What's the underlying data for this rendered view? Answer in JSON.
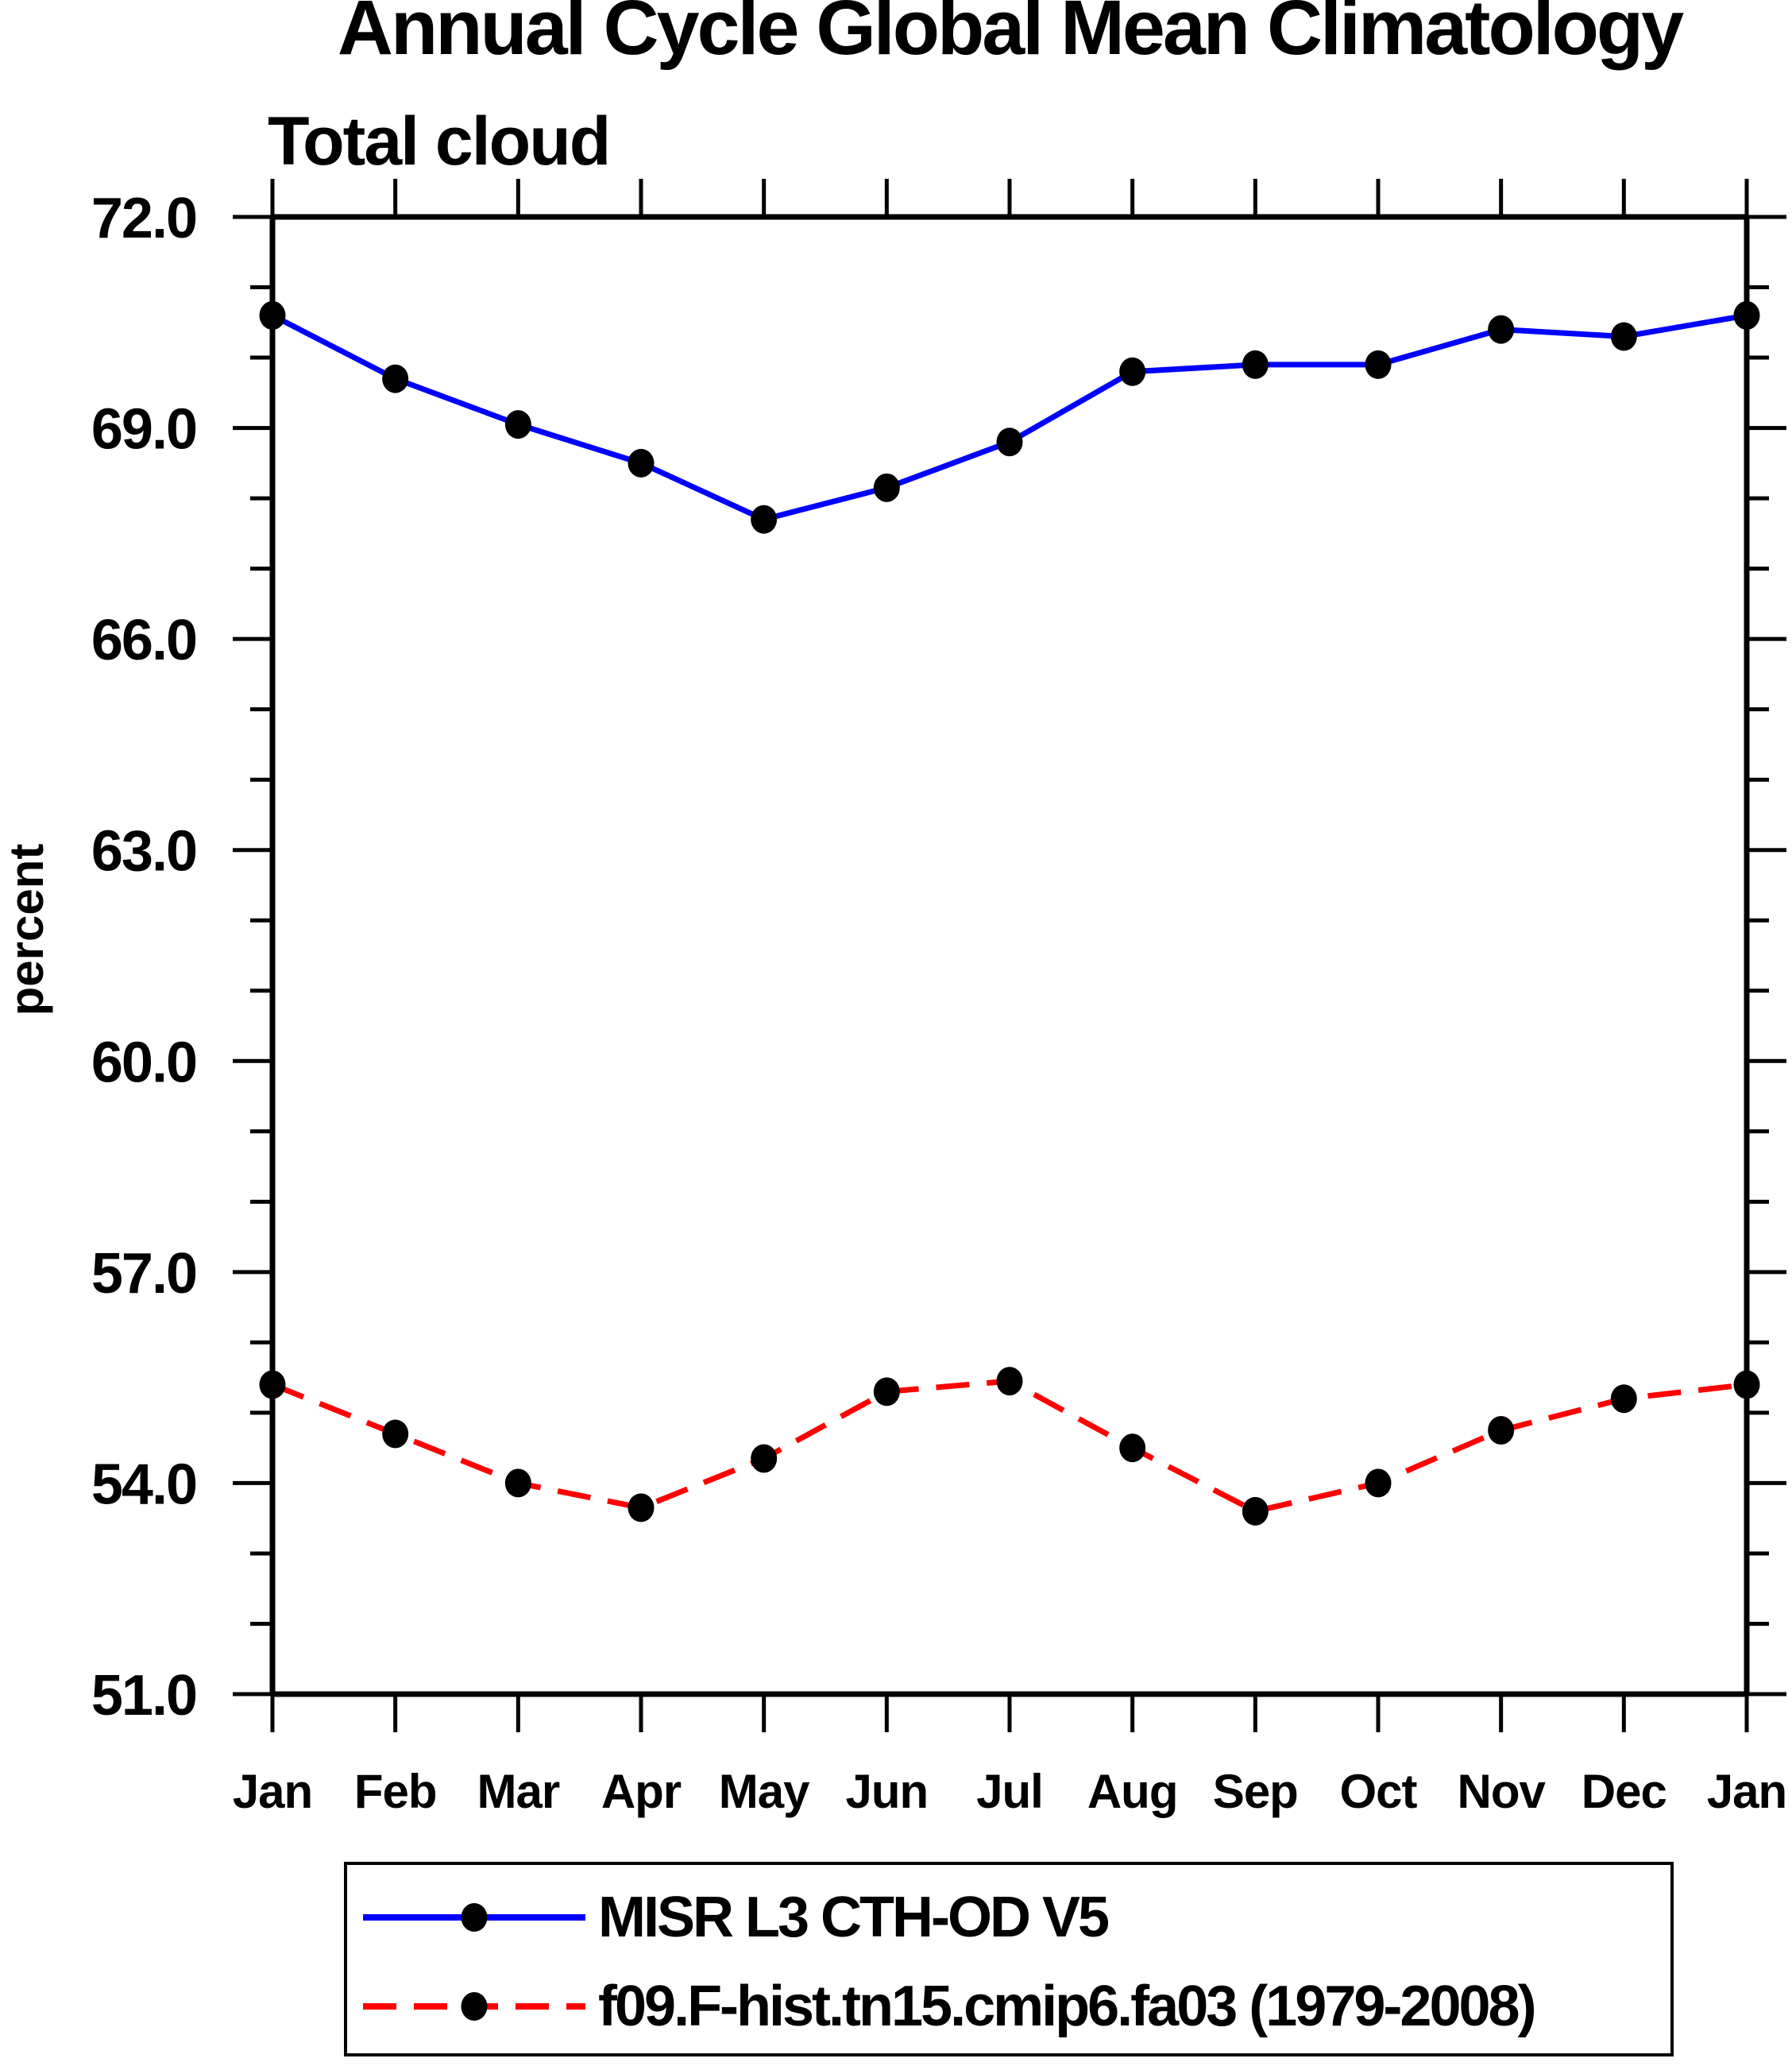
{
  "header": {
    "title": "Annual Cycle Global Mean Climatology",
    "subtitle": "Total cloud"
  },
  "axes": {
    "y_title": "percent"
  },
  "legend": {
    "position": "bottom",
    "items": [
      {
        "label": "MISR L3 CTH-OD V5",
        "line": "solid-blue",
        "marker": "filled-black-dot"
      },
      {
        "label": "f09.F-hist.tn15.cmip6.fa03 (1979-2008)",
        "line": "dashed-red",
        "marker": "filled-black-dot"
      }
    ]
  },
  "chart_data": {
    "type": "line",
    "title": "Annual Cycle Global Mean Climatology",
    "subtitle": "Total cloud",
    "xlabel": "",
    "ylabel": "percent",
    "categories": [
      "Jan",
      "Feb",
      "Mar",
      "Apr",
      "May",
      "Jun",
      "Jul",
      "Aug",
      "Sep",
      "Oct",
      "Nov",
      "Dec",
      "Jan"
    ],
    "ylim": [
      51.0,
      72.0
    ],
    "ytick_major": [
      51,
      54,
      57,
      60,
      63,
      66,
      69,
      72
    ],
    "ytick_labels": [
      "51.0",
      "54.0",
      "57.0",
      "60.0",
      "63.0",
      "66.0",
      "69.0",
      "72.0"
    ],
    "ytick_minor_step": 1,
    "grid": false,
    "legend_position": "bottom",
    "colors": {
      "axis": "#000000",
      "marker": "#000000",
      "series1": "#0000ff",
      "series2": "#ff0000"
    },
    "series": [
      {
        "name": "MISR L3 CTH-OD V5",
        "color": "#0000ff",
        "line_style": "solid",
        "marker": "filled-black-dot",
        "values": [
          70.6,
          69.7,
          69.05,
          68.5,
          67.7,
          68.15,
          68.8,
          69.8,
          69.9,
          69.9,
          70.4,
          70.3,
          70.6
        ]
      },
      {
        "name": "f09.F-hist.tn15.cmip6.fa03 (1979-2008)",
        "color": "#ff0000",
        "line_style": "dashed",
        "marker": "filled-black-dot",
        "values": [
          55.4,
          54.7,
          54.0,
          53.65,
          54.35,
          55.3,
          55.45,
          54.5,
          53.6,
          54.0,
          54.75,
          55.2,
          55.4
        ]
      }
    ]
  }
}
